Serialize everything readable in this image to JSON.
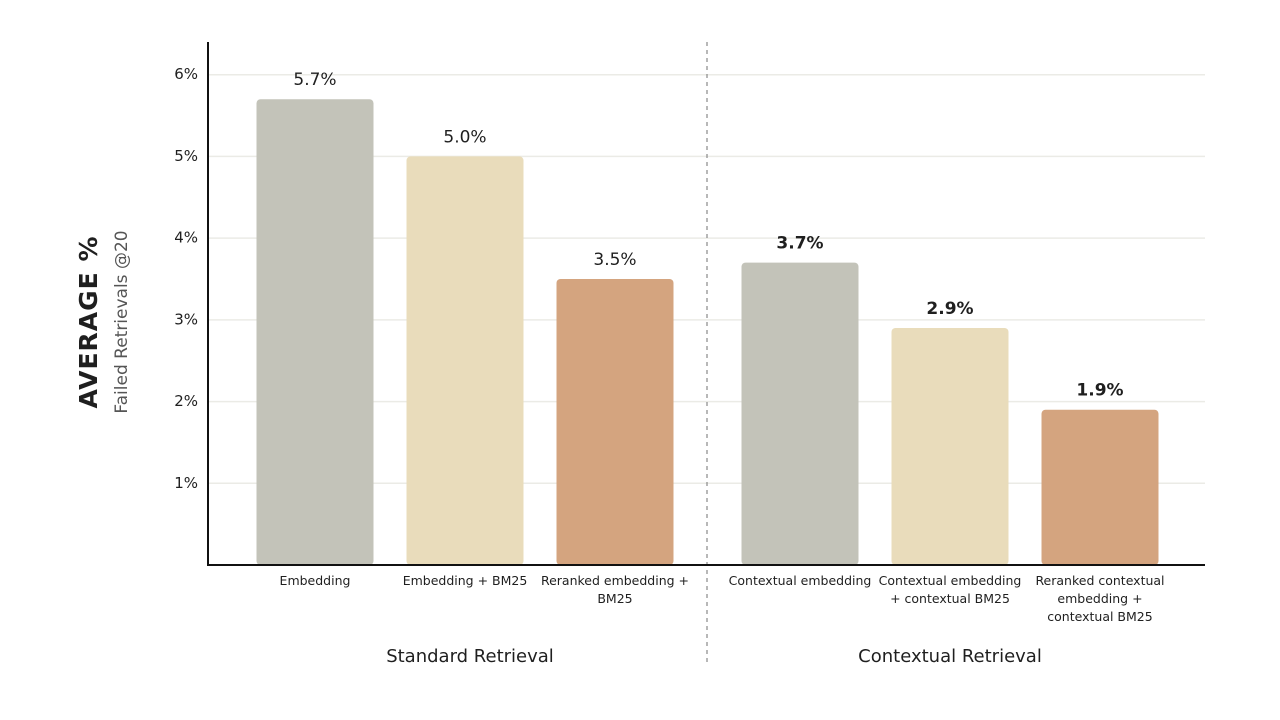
{
  "chart_data": {
    "type": "bar",
    "y_title": "AVERAGE %",
    "y_subtitle": "Failed Retrievals @20",
    "categories": [
      "Embedding",
      "Embedding + BM25",
      "Reranked embedding + BM25",
      "Contextual embedding",
      "Contextual embedding + contextual BM25",
      "Reranked contextual embedding + contextual BM25"
    ],
    "values": [
      5.7,
      5.0,
      3.5,
      3.7,
      2.9,
      1.9
    ],
    "value_labels": [
      "5.7%",
      "5.0%",
      "3.5%",
      "3.7%",
      "2.9%",
      "1.9%"
    ],
    "colors": [
      "#c3c3b9",
      "#e9dcbb",
      "#d4a47f",
      "#c3c3b9",
      "#e9dcbb",
      "#d4a47f"
    ],
    "groups": [
      "Standard Retrieval",
      "Contextual Retrieval"
    ],
    "ylim": [
      0,
      6.4
    ],
    "yticks": [
      {
        "value": 1,
        "label": "1%"
      },
      {
        "value": 2,
        "label": "2%"
      },
      {
        "value": 3,
        "label": "3%"
      },
      {
        "value": 4,
        "label": "4%"
      },
      {
        "value": 5,
        "label": "5%"
      },
      {
        "value": 6,
        "label": "6%"
      }
    ],
    "grid": true
  }
}
